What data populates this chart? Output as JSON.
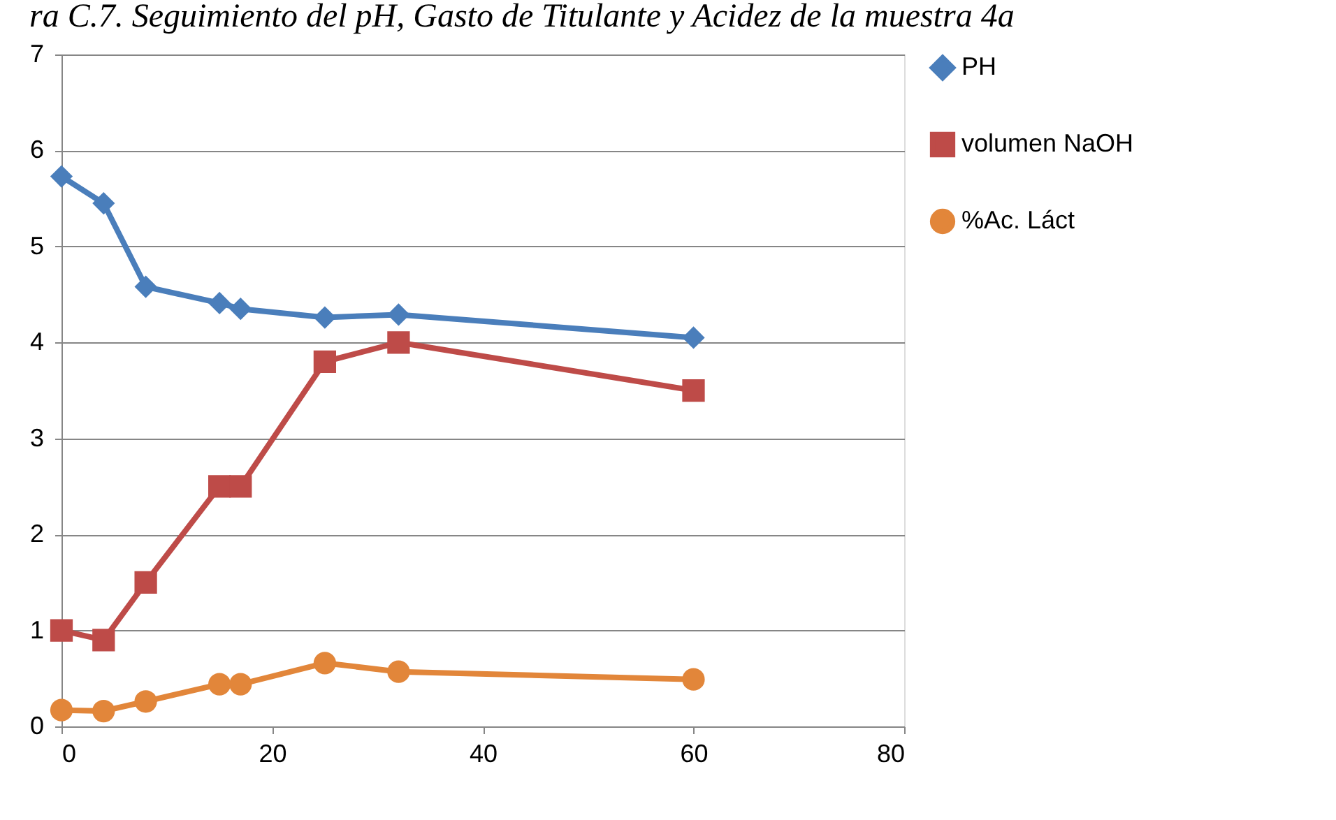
{
  "chart_data": {
    "type": "line",
    "title": "ra C.7. Seguimiento del pH, Gasto de Titulante y Acidez de la muestra 4a",
    "x": [
      0,
      4,
      8,
      15,
      17,
      25,
      32,
      60
    ],
    "series": [
      {
        "name": "PH",
        "color": "#4a7ebb",
        "marker": "diamond",
        "values": [
          5.73,
          5.45,
          4.58,
          4.41,
          4.35,
          4.26,
          4.29,
          4.05
        ]
      },
      {
        "name": "volumen NaOH",
        "color": "#be4b48",
        "marker": "square",
        "values": [
          1.0,
          0.9,
          1.5,
          2.5,
          2.5,
          3.8,
          4.0,
          3.5
        ]
      },
      {
        "name": "%Ac. Láct",
        "color": "#e2863a",
        "marker": "circle",
        "values": [
          0.17,
          0.16,
          0.26,
          0.44,
          0.44,
          0.66,
          0.57,
          0.49
        ]
      }
    ],
    "xlim": [
      0,
      80
    ],
    "xticks": [
      0,
      20,
      40,
      60,
      80
    ],
    "ylim": [
      0,
      7
    ],
    "yticks": [
      0,
      1,
      2,
      3,
      4,
      5,
      6,
      7
    ],
    "grid": "y",
    "legend": "right",
    "line_style": "solid"
  }
}
